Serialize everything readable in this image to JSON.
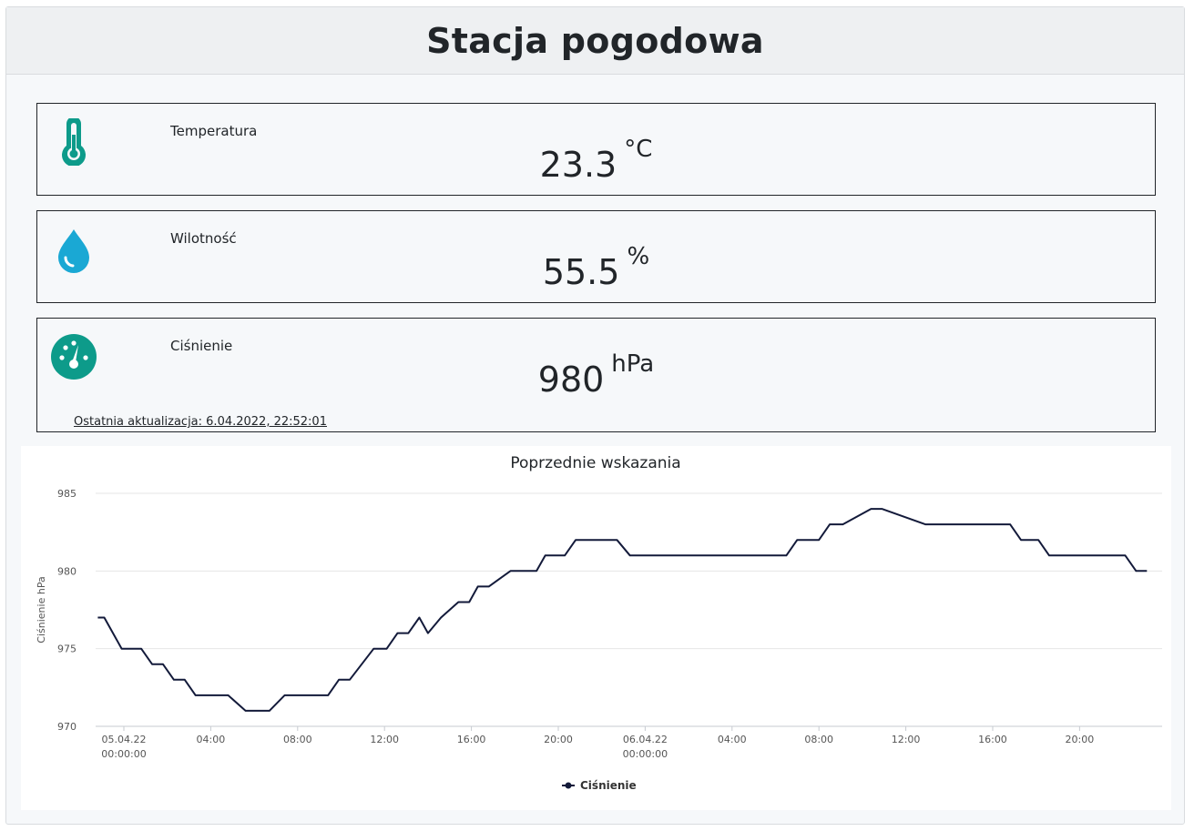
{
  "header": {
    "title": "Stacja pogodowa"
  },
  "cards": [
    {
      "label": "Temperatura",
      "value": "23.3",
      "unit": "°C",
      "icon": "thermometer-icon",
      "color": "#0d9b8a"
    },
    {
      "label": "Wilotność",
      "value": "55.5",
      "unit": "%",
      "icon": "water-drop-icon",
      "color": "#1aa8d4"
    },
    {
      "label": "Ciśnienie",
      "value": "980",
      "unit": "hPa",
      "icon": "gauge-icon",
      "color": "#0d9b8a"
    }
  ],
  "last_update": "Ostatnia aktualizacja: 6.04.2022, 22:52:01",
  "chart_data": {
    "type": "line",
    "title": "Poprzednie wskazania",
    "ylabel": "Ciśnienie hPa",
    "xlabel": "",
    "ylim": [
      970,
      985
    ],
    "y_ticks": [
      970,
      975,
      980,
      985
    ],
    "x_range_hours": [
      -1.3,
      47.8
    ],
    "x_ticks": [
      {
        "h": 0,
        "label": "05.04.22",
        "label2": "00:00:00"
      },
      {
        "h": 4,
        "label": "04:00",
        "label2": ""
      },
      {
        "h": 8,
        "label": "08:00",
        "label2": ""
      },
      {
        "h": 12,
        "label": "12:00",
        "label2": ""
      },
      {
        "h": 16,
        "label": "16:00",
        "label2": ""
      },
      {
        "h": 20,
        "label": "20:00",
        "label2": ""
      },
      {
        "h": 24,
        "label": "06.04.22",
        "label2": "00:00:00"
      },
      {
        "h": 28,
        "label": "04:00",
        "label2": ""
      },
      {
        "h": 32,
        "label": "08:00",
        "label2": ""
      },
      {
        "h": 36,
        "label": "12:00",
        "label2": ""
      },
      {
        "h": 40,
        "label": "16:00",
        "label2": ""
      },
      {
        "h": 44,
        "label": "20:00",
        "label2": ""
      }
    ],
    "legend": {
      "position": "bottom-center",
      "label": "Ciśnienie",
      "color": "#131a3a"
    },
    "series": [
      {
        "name": "Ciśnienie",
        "color": "#131a3a",
        "x": [
          -1.2,
          -0.9,
          -0.1,
          0.8,
          1.3,
          1.8,
          2.3,
          2.8,
          3.3,
          4.4,
          4.8,
          5.6,
          6.7,
          7.4,
          8.2,
          9.4,
          9.9,
          10.4,
          11.5,
          12.1,
          12.6,
          13.1,
          13.6,
          14.0,
          14.6,
          15.4,
          15.9,
          16.3,
          16.8,
          17.8,
          18.0,
          19.0,
          19.4,
          20.3,
          20.8,
          22.2,
          22.7,
          23.3,
          30.5,
          31.0,
          32.0,
          32.5,
          33.1,
          34.4,
          34.9,
          36.9,
          37.4,
          40.8,
          41.3,
          42.1,
          42.6,
          46.1,
          46.6,
          47.1
        ],
        "values": [
          977,
          977,
          975,
          975,
          974,
          974,
          973,
          973,
          972,
          972,
          972,
          971,
          971,
          972,
          972,
          972,
          973,
          973,
          975,
          975,
          976,
          976,
          977,
          976,
          977,
          978,
          978,
          979,
          979,
          980,
          980,
          980,
          981,
          981,
          982,
          982,
          982,
          981,
          981,
          982,
          982,
          983,
          983,
          984,
          984,
          983,
          983,
          983,
          982,
          982,
          981,
          981,
          980,
          980
        ]
      }
    ]
  }
}
